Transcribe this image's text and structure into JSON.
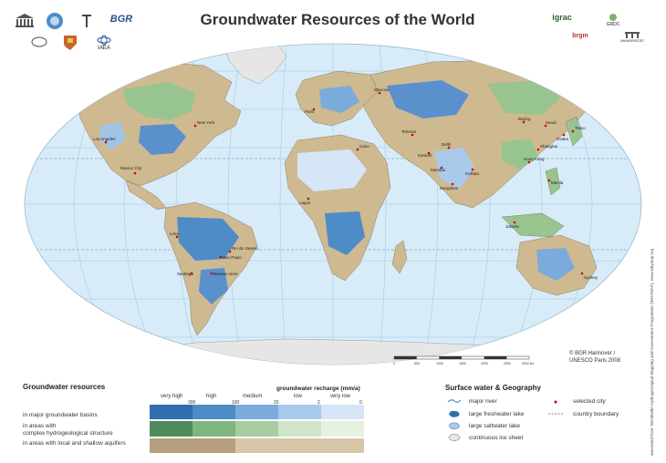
{
  "title": "Groundwater Resources of the World",
  "logos": {
    "left": [
      "UNESCO",
      "IAH",
      "IHP",
      "BGR",
      "Earth Science",
      "Commission",
      "IAEA"
    ],
    "bgr_label": "BGR",
    "earth_label": "Earth Sciences",
    "iaea_label": "IAEA",
    "igrac_label": "igrac",
    "brgm_label": "brgm",
    "grdc_label": "GRDC",
    "univ_label": "UNIVERSITÄT"
  },
  "credit": [
    "© BGR Hannover /",
    "UNESCO Paris 2008"
  ],
  "scale": {
    "ticks": [
      "0",
      "500",
      "1000",
      "1500",
      "2000",
      "2500",
      "3000 km"
    ]
  },
  "side_note": "annotated from: Worldwide Hydrogeological Mapping and Assessment Programme (WHYMAP), www.whymap.org",
  "cities": [
    {
      "name": "Los Angeles"
    },
    {
      "name": "New York"
    },
    {
      "name": "Mexico City"
    },
    {
      "name": "Lima"
    },
    {
      "name": "Santiago"
    },
    {
      "name": "Rio de Janeiro"
    },
    {
      "name": "Sao Paulo"
    },
    {
      "name": "Buenos Aires"
    },
    {
      "name": "Paris"
    },
    {
      "name": "Moscow"
    },
    {
      "name": "Cairo"
    },
    {
      "name": "Lagos"
    },
    {
      "name": "Teheran"
    },
    {
      "name": "Karachi"
    },
    {
      "name": "Mumbai"
    },
    {
      "name": "Delhi"
    },
    {
      "name": "Bangalore"
    },
    {
      "name": "Kolkata"
    },
    {
      "name": "Beijing"
    },
    {
      "name": "Seoul"
    },
    {
      "name": "Osaka"
    },
    {
      "name": "Tokyo"
    },
    {
      "name": "Shanghai"
    },
    {
      "name": "Hong Kong"
    },
    {
      "name": "Manila"
    },
    {
      "name": "Jakarta"
    },
    {
      "name": "Sydney"
    }
  ],
  "legend": {
    "gw_title": "Groundwater resources",
    "rows": [
      {
        "label": "in major groundwater basins"
      },
      {
        "label": "in areas with",
        "label2": "complex hydrogeological structure"
      },
      {
        "label": "in areas with local and shallow aquifers"
      }
    ],
    "recharge_title": "groundwater recharge (mm/a)",
    "categories": [
      "very high",
      "high",
      "medium",
      "low",
      "very low"
    ],
    "thresholds": [
      "300",
      "100",
      "20",
      "2",
      "0"
    ],
    "colors": {
      "basin": [
        "#2f6fad",
        "#4d8cc6",
        "#7aabdb",
        "#a9c9ea",
        "#d6e6f6"
      ],
      "complex": [
        "#4f8a5a",
        "#7fb57f",
        "#a7cda2",
        "#cfe5c8",
        "#e7f1e2"
      ],
      "local": [
        "#b69f7f",
        "#d7c7a8"
      ]
    },
    "sw_title": "Surface water & Geography",
    "sw_items": [
      {
        "label": "major river",
        "icon": "river-icon"
      },
      {
        "label": "large freshwater lake",
        "icon": "freshwater-lake-icon"
      },
      {
        "label": "large saltwater lake",
        "icon": "saltwater-lake-icon"
      },
      {
        "label": "continuous ice sheet",
        "icon": "ice-sheet-icon"
      },
      {
        "label": "selected city",
        "icon": "city-dot-icon"
      },
      {
        "label": "country boundary",
        "icon": "boundary-icon"
      }
    ]
  },
  "map_colors": {
    "ocean": "#d7ecf8",
    "ice": "#e6e6e6",
    "local": "#cfb991",
    "basin": "#5a90cb",
    "complex": "#98c490"
  }
}
